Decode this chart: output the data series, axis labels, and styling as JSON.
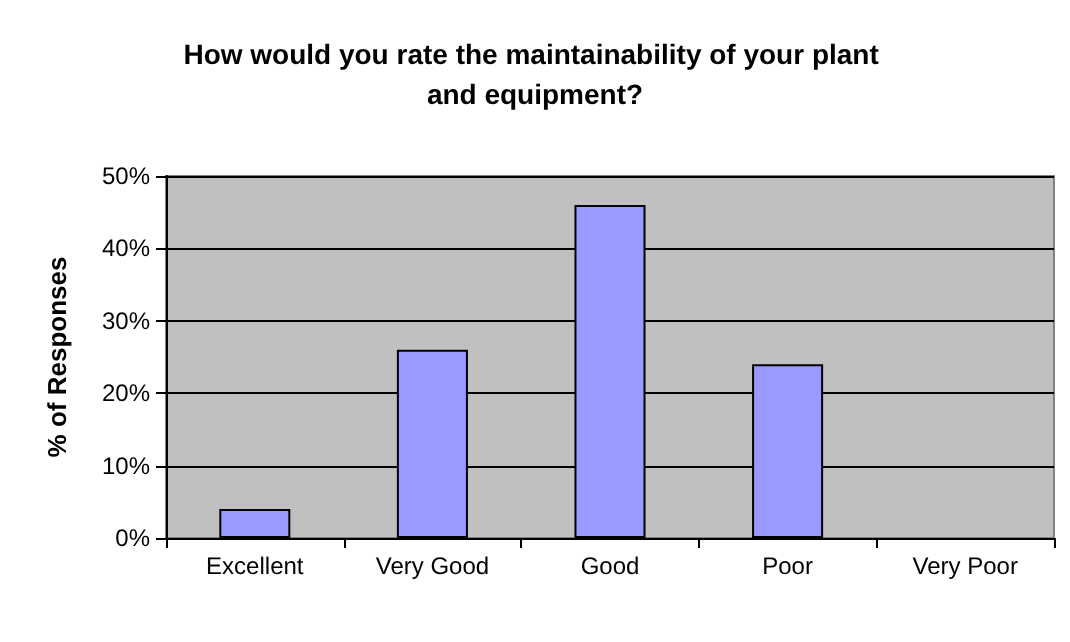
{
  "chart_data": {
    "type": "bar",
    "title": "How would you rate the maintainability of your plant and equipment?",
    "ylabel": "% of Responses",
    "categories": [
      "Excellent",
      "Very Good",
      "Good",
      "Poor",
      "Very Poor"
    ],
    "values": [
      4,
      26,
      46,
      24,
      0
    ],
    "color": "#9999ff",
    "ylim": [
      0,
      50
    ],
    "yticks": [
      {
        "value": 0,
        "label": "0%"
      },
      {
        "value": 10,
        "label": "10%"
      },
      {
        "value": 20,
        "label": "20%"
      },
      {
        "value": 30,
        "label": "30%"
      },
      {
        "value": 40,
        "label": "40%"
      },
      {
        "value": 50,
        "label": "50%"
      }
    ],
    "grid": "y"
  }
}
